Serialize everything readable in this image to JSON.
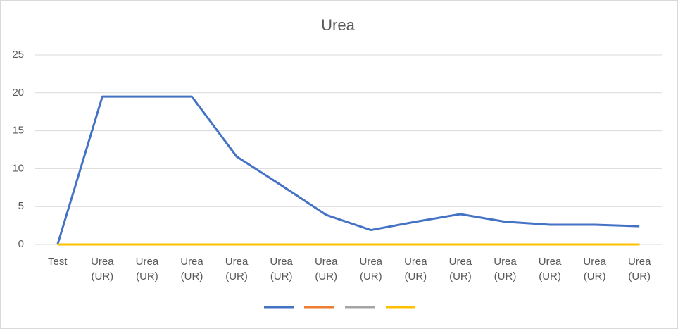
{
  "chart_data": {
    "type": "line",
    "title": "Urea",
    "categories": [
      "Test",
      "Urea (UR)",
      "Urea (UR)",
      "Urea (UR)",
      "Urea (UR)",
      "Urea (UR)",
      "Urea (UR)",
      "Urea (UR)",
      "Urea (UR)",
      "Urea (UR)",
      "Urea (UR)",
      "Urea (UR)",
      "Urea (UR)",
      "Urea (UR)"
    ],
    "series": [
      {
        "color": "#4472c4",
        "values": [
          0,
          19.5,
          19.5,
          19.5,
          11.6,
          7.8,
          3.9,
          1.9,
          3.0,
          4.0,
          3.0,
          2.6,
          2.6,
          2.4
        ]
      },
      {
        "color": "#ed7d31",
        "values": [
          0,
          0,
          0,
          0,
          0,
          0,
          0,
          0,
          0,
          0,
          0,
          0,
          0,
          0
        ]
      },
      {
        "color": "#a5a5a5",
        "values": [
          0,
          0,
          0,
          0,
          0,
          0,
          0,
          0,
          0,
          0,
          0,
          0,
          0,
          0
        ]
      },
      {
        "color": "#ffc000",
        "values": [
          0,
          0,
          0,
          0,
          0,
          0,
          0,
          0,
          0,
          0,
          0,
          0,
          0,
          0
        ]
      }
    ],
    "ylim": [
      0,
      25
    ],
    "yticks": [
      0,
      5,
      10,
      15,
      20,
      25
    ],
    "grid": true,
    "legend": "bottom"
  }
}
